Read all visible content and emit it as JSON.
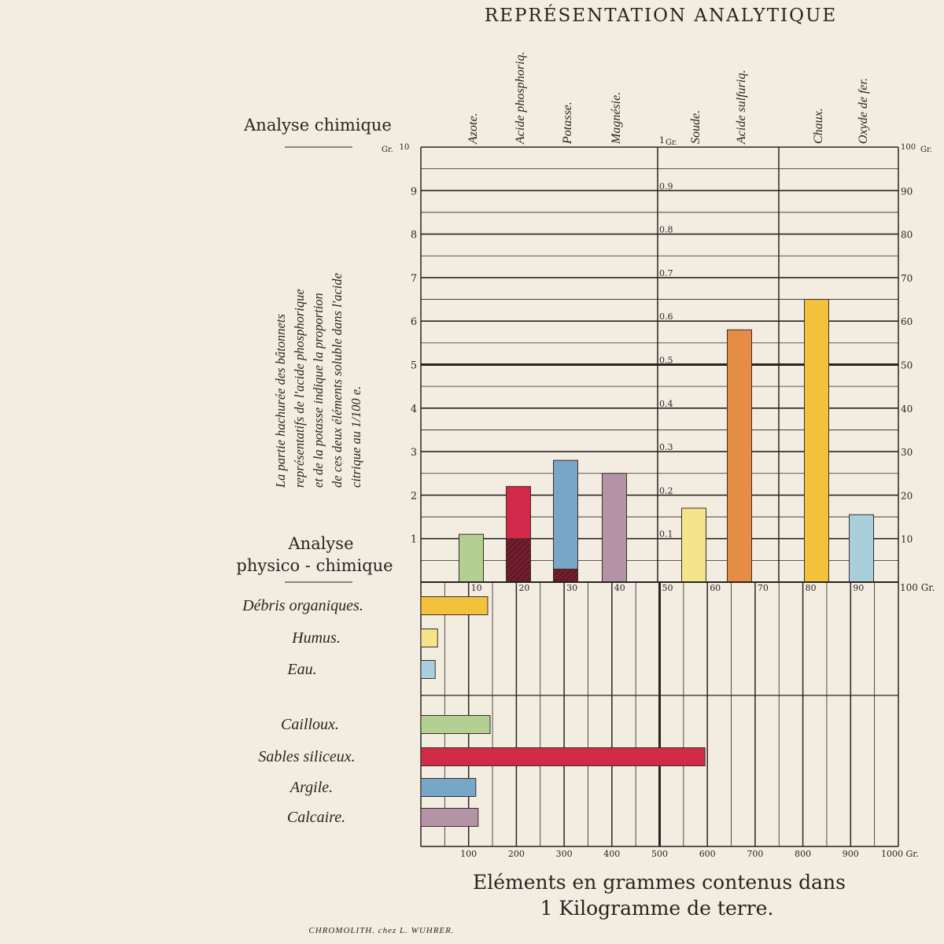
{
  "title": "REPRÉSENTATION ANALYTIQUE",
  "section_chemical": "Analyse chimique",
  "section_physical_1": "Analyse",
  "section_physical_2": "physico - chimique",
  "side_note": [
    "La partie hachurée des bâtonnets",
    "représentatifs de l'acide phosphorique",
    "et de la potasse indique la proportion",
    "de ces deux éléments soluble dans l'acide",
    "citrique au 1/100 e."
  ],
  "footer_1": "Eléments en grammes contenus dans",
  "footer_2": "1 Kilogramme de terre.",
  "imprint": "CHROMOLITH. chez L. WUHRER.",
  "colors": {
    "green": "#b4cf92",
    "red": "#d02a48",
    "blue": "#78a6c6",
    "mauve": "#b593a6",
    "yellow_pale": "#f4e48a",
    "orange": "#e58c45",
    "yellow": "#f2c23c",
    "light_blue": "#a9cedc",
    "grid": "#2a2420"
  },
  "chart_data": [
    {
      "type": "bar",
      "section": "Analyse chimique",
      "categories": [
        "Azote.",
        "Acide phosphoriq.",
        "Potasse.",
        "Magnésie.",
        "Soude.",
        "Acide sulfuriq.",
        "Chaux.",
        "Oxyde de fer."
      ],
      "values": [
        1.1,
        2.2,
        2.8,
        2.5,
        1.7,
        5.8,
        6.5,
        1.55
      ],
      "hatched_values": [
        null,
        1.0,
        0.3,
        null,
        null,
        null,
        null,
        null
      ],
      "bar_colors": [
        "green",
        "red",
        "blue",
        "mauve",
        "yellow_pale",
        "orange",
        "yellow",
        "light_blue"
      ],
      "axes": {
        "left": {
          "label": "Gr.",
          "ticks": [
            "10",
            "9",
            "8",
            "7",
            "6",
            "5",
            "4",
            "3",
            "2",
            "1"
          ],
          "range": [
            0,
            10
          ]
        },
        "middle": {
          "label": "Gr.",
          "ticks": [
            "1",
            "0.9",
            "0.8",
            "0.7",
            "0.6",
            "0.5",
            "0.4",
            "0.3",
            "0.2",
            "0.1"
          ],
          "range": [
            0,
            1
          ]
        },
        "right": {
          "label": "Gr.",
          "ticks": [
            "100",
            "90",
            "80",
            "70",
            "60",
            "50",
            "40",
            "30",
            "20",
            "10"
          ],
          "range": [
            0,
            100
          ]
        }
      },
      "notes": "Azote-Magnésie read on left scale (Gr.), Soude and Acide sulfurique on middle scale (0-1 Gr.), Chaux and Oxyde de fer on right scale (0-100 Gr.)"
    },
    {
      "type": "bar",
      "orientation": "horizontal",
      "section": "Analyse physico-chimique",
      "categories": [
        "Débris organiques.",
        "Humus.",
        "Eau.",
        "Cailloux.",
        "Sables siliceux.",
        "Argile.",
        "Calcaire."
      ],
      "values": [
        14,
        3.5,
        3,
        14.5,
        59.5,
        11.5,
        12
      ],
      "unit_note": "upper scale 0-100 Gr.",
      "values_grams_lower_scale": [
        140,
        35,
        30,
        145,
        595,
        115,
        120
      ],
      "bar_colors": [
        "yellow",
        "yellow_pale",
        "light_blue",
        "green",
        "red",
        "blue",
        "mauve"
      ],
      "top_ticks": [
        "10",
        "20",
        "30",
        "40",
        "50",
        "60",
        "70",
        "80",
        "90",
        "100 Gr."
      ],
      "bottom_ticks": [
        "100",
        "200",
        "300",
        "400",
        "500",
        "600",
        "700",
        "800",
        "900",
        "1000 Gr."
      ],
      "xlim": [
        0,
        1000
      ]
    }
  ]
}
